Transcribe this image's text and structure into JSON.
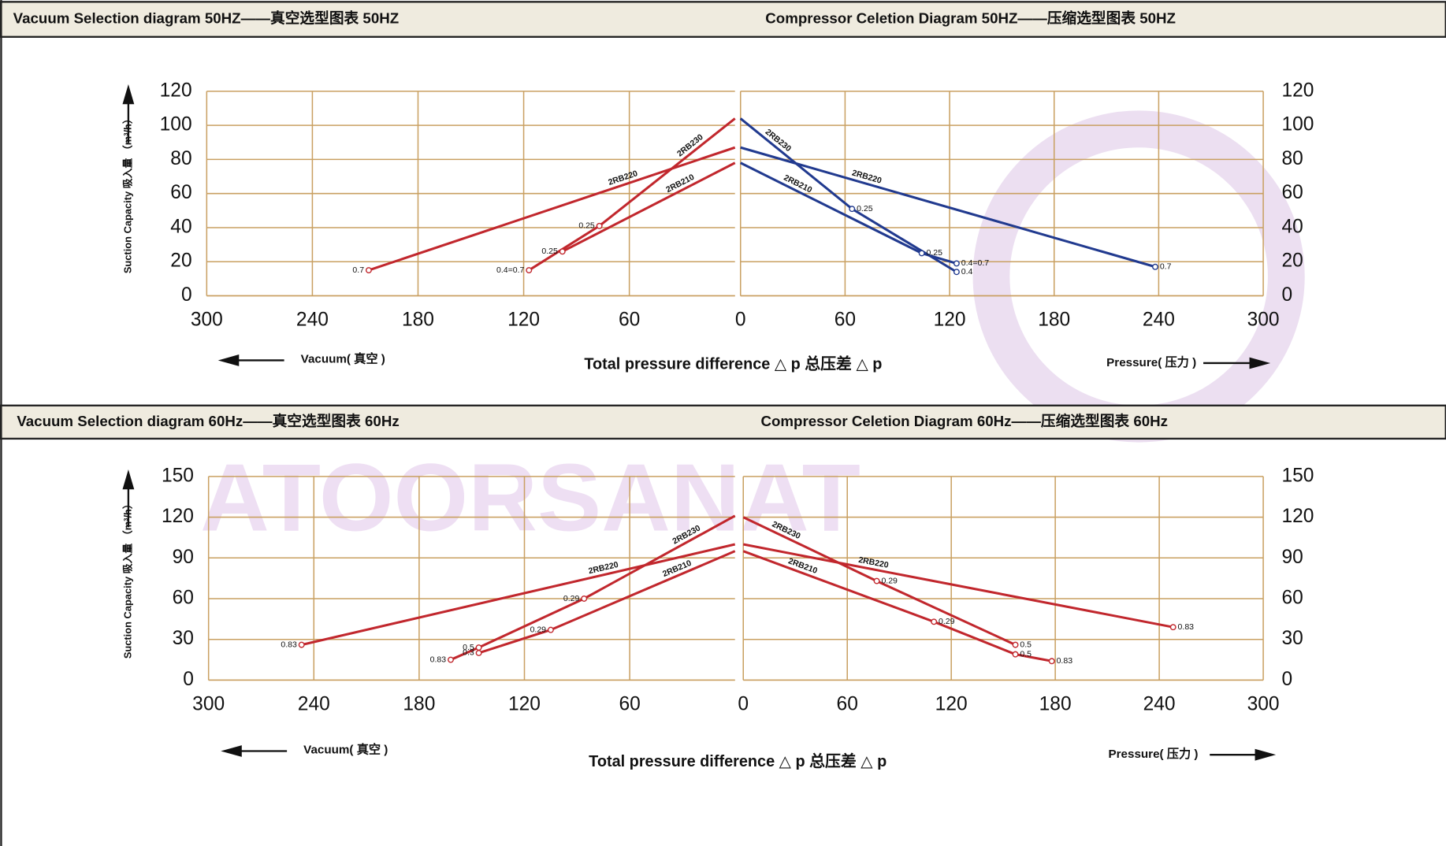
{
  "watermark": "ATOORSANAT",
  "chart_data": [
    {
      "type": "line",
      "title": "Vacuum Selection diagram 50HZ——真空选型图表 50HZ",
      "ylabel": "Suction Capacity 吸入量 （m³/h）",
      "xlabel": "Total pressure difference △ p 总压差 △ p",
      "direction_label": "Vacuum( 真空 )",
      "xlim": [
        300,
        0
      ],
      "xticks": [
        300,
        240,
        180,
        120,
        60
      ],
      "ylim": [
        0,
        120
      ],
      "yticks": [
        0,
        20,
        40,
        60,
        80,
        100,
        120
      ],
      "grid": true,
      "series": [
        {
          "name": "2RB230",
          "color": "#c1272d",
          "x": [
            0,
            77,
            117
          ],
          "values": [
            104,
            41,
            15
          ],
          "point_labels": [
            null,
            "0.25",
            "0.4=0.7"
          ]
        },
        {
          "name": "2RB210",
          "color": "#c1272d",
          "x": [
            0,
            98
          ],
          "values": [
            78,
            26
          ],
          "point_labels": [
            null,
            "0.25"
          ]
        },
        {
          "name": "2RB220",
          "color": "#c1272d",
          "x": [
            0,
            208
          ],
          "values": [
            87,
            15
          ],
          "point_labels": [
            null,
            "0.7"
          ]
        }
      ]
    },
    {
      "type": "line",
      "title": "Compressor Celetion Diagram 50HZ——压缩选型图表 50HZ",
      "direction_label": "Pressure( 压力 )",
      "xlim": [
        0,
        300
      ],
      "xticks": [
        0,
        60,
        120,
        180,
        240,
        300
      ],
      "ylim": [
        0,
        120
      ],
      "yticks": [
        0,
        20,
        40,
        60,
        80,
        100,
        120
      ],
      "grid": true,
      "series": [
        {
          "name": "2RB230",
          "color": "#213a8f",
          "x": [
            0,
            64,
            124
          ],
          "values": [
            104,
            51,
            14
          ],
          "point_labels": [
            null,
            "0.25",
            "0.4"
          ]
        },
        {
          "name": "2RB210",
          "color": "#213a8f",
          "x": [
            0,
            104,
            124
          ],
          "values": [
            78,
            25,
            19
          ],
          "point_labels": [
            null,
            "0.25",
            "0.4=0.7"
          ]
        },
        {
          "name": "2RB220",
          "color": "#213a8f",
          "x": [
            0,
            238
          ],
          "values": [
            87,
            17
          ],
          "point_labels": [
            null,
            "0.7"
          ]
        }
      ]
    },
    {
      "type": "line",
      "title": "Vacuum Selection diagram 60Hz——真空选型图表 60Hz",
      "ylabel": "Suction Capacity 吸入量 （m³/h）",
      "xlabel": "Total pressure difference △ p 总压差 △ p",
      "direction_label": "Vacuum( 真空 )",
      "xlim": [
        300,
        0
      ],
      "xticks": [
        300,
        240,
        180,
        120,
        60
      ],
      "ylim": [
        0,
        150
      ],
      "yticks": [
        0,
        30,
        60,
        90,
        120,
        150
      ],
      "grid": true,
      "series": [
        {
          "name": "2RB230",
          "color": "#c1272d",
          "x": [
            0,
            86,
            146,
            162
          ],
          "values": [
            121,
            60,
            24,
            15
          ],
          "point_labels": [
            null,
            "0.29",
            "0.5",
            "0.83"
          ]
        },
        {
          "name": "2RB210",
          "color": "#c1272d",
          "x": [
            0,
            105,
            146
          ],
          "values": [
            95,
            37,
            20
          ],
          "point_labels": [
            null,
            "0.29",
            "0.3"
          ]
        },
        {
          "name": "2RB220",
          "color": "#c1272d",
          "x": [
            0,
            247
          ],
          "values": [
            100,
            26
          ],
          "point_labels": [
            null,
            "0.83"
          ]
        }
      ]
    },
    {
      "type": "line",
      "title": "Compressor Celetion Diagram 60Hz——压缩选型图表 60Hz",
      "direction_label": "Pressure( 压力 )",
      "xlim": [
        0,
        300
      ],
      "xticks": [
        0,
        60,
        120,
        180,
        240,
        300
      ],
      "ylim": [
        0,
        150
      ],
      "yticks": [
        0,
        30,
        60,
        90,
        120,
        150
      ],
      "grid": true,
      "series": [
        {
          "name": "2RB230",
          "color": "#c1272d",
          "x": [
            0,
            77,
            157
          ],
          "values": [
            120,
            73,
            26
          ],
          "point_labels": [
            null,
            "0.29",
            "0.5"
          ]
        },
        {
          "name": "2RB210",
          "color": "#c1272d",
          "x": [
            0,
            110,
            157,
            178
          ],
          "values": [
            95,
            43,
            19,
            14
          ],
          "point_labels": [
            null,
            "0.29",
            "0.5",
            "0.83"
          ]
        },
        {
          "name": "2RB220",
          "color": "#c1272d",
          "x": [
            0,
            248
          ],
          "values": [
            100,
            39
          ],
          "point_labels": [
            null,
            "0.83"
          ]
        }
      ]
    }
  ]
}
